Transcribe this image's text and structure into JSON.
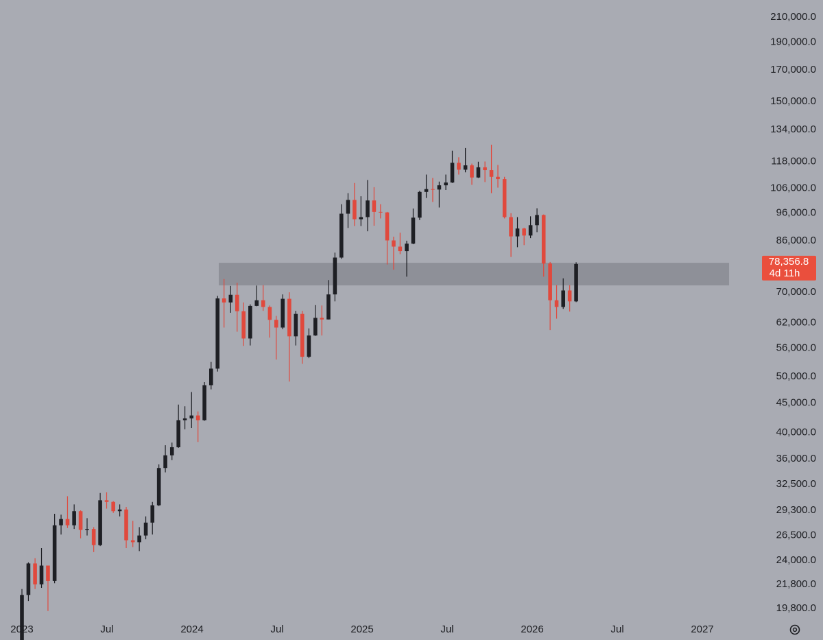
{
  "chart_data": {
    "type": "candlestick",
    "log_scale": true,
    "up_color": "#1e1f24",
    "down_color": "#e0493d",
    "zone_color": "#8e9098",
    "last_color": "#ea4f3d",
    "ylim": [
      18850,
      224900
    ],
    "yticks": [
      {
        "value": 210000,
        "label": "210,000.0"
      },
      {
        "value": 190000,
        "label": "190,000.0"
      },
      {
        "value": 170000,
        "label": "170,000.0"
      },
      {
        "value": 150000,
        "label": "150,000.0"
      },
      {
        "value": 134000,
        "label": "134,000.0"
      },
      {
        "value": 118000,
        "label": "118,000.0"
      },
      {
        "value": 106000,
        "label": "106,000.0"
      },
      {
        "value": 96000,
        "label": "96,000.0"
      },
      {
        "value": 86000,
        "label": "86,000.0"
      },
      {
        "value": 70000,
        "label": "70,000.0"
      },
      {
        "value": 62000,
        "label": "62,000.0"
      },
      {
        "value": 56000,
        "label": "56,000.0"
      },
      {
        "value": 50000,
        "label": "50,000.0"
      },
      {
        "value": 45000,
        "label": "45,000.0"
      },
      {
        "value": 40000,
        "label": "40,000.0"
      },
      {
        "value": 36000,
        "label": "36,000.0"
      },
      {
        "value": 32500,
        "label": "32,500.0"
      },
      {
        "value": 29300,
        "label": "29,300.0"
      },
      {
        "value": 26500,
        "label": "26,500.0"
      },
      {
        "value": 24000,
        "label": "24,000.0"
      },
      {
        "value": 21800,
        "label": "21,800.0"
      },
      {
        "value": 19800,
        "label": "19,800.0"
      }
    ],
    "xlim": [
      2022.871,
      2027.306
    ],
    "xticks": [
      2023,
      {
        "value": 2023.5,
        "label": "Jul"
      },
      2024,
      {
        "value": 2024.5,
        "label": "Jul"
      },
      2025,
      {
        "value": 2025.5,
        "label": "Jul"
      },
      2026,
      {
        "value": 2026.5,
        "label": "Jul"
      },
      2027
    ],
    "zone": {
      "xlim": [
        2024.157,
        2027.157
      ],
      "ylim": [
        71950,
        78750
      ]
    },
    "last_price": {
      "value": 78356.8,
      "label": "78,356.8"
    },
    "countdown": "4d 11h",
    "x": [
      2023.0,
      2023.038,
      2023.077,
      2023.115,
      2023.153,
      2023.192,
      2023.23,
      2023.268,
      2023.307,
      2023.345,
      2023.383,
      2023.422,
      2023.46,
      2023.498,
      2023.537,
      2023.575,
      2023.613,
      2023.652,
      2023.69,
      2023.728,
      2023.767,
      2023.805,
      2023.843,
      2023.882,
      2023.92,
      2023.958,
      2023.997,
      2024.035,
      2024.073,
      2024.112,
      2024.15,
      2024.188,
      2024.227,
      2024.265,
      2024.303,
      2024.342,
      2024.38,
      2024.418,
      2024.457,
      2024.495,
      2024.533,
      2024.572,
      2024.61,
      2024.648,
      2024.687,
      2024.725,
      2024.763,
      2024.802,
      2024.84,
      2024.878,
      2024.917,
      2024.955,
      2024.993,
      2025.032,
      2025.07,
      2025.108,
      2025.147,
      2025.185,
      2025.223,
      2025.262,
      2025.3,
      2025.338,
      2025.377,
      2025.415,
      2025.453,
      2025.492,
      2025.53,
      2025.568,
      2025.607,
      2025.645,
      2025.683,
      2025.722,
      2025.76,
      2025.798,
      2025.837,
      2025.875,
      2025.913,
      2025.952,
      2025.99,
      2026.028,
      2026.067,
      2026.105,
      2026.143,
      2026.182,
      2026.22,
      2026.258
    ],
    "ohlc": [
      [
        16600,
        21400,
        16500,
        20900
      ],
      [
        20900,
        23800,
        20400,
        23700
      ],
      [
        23700,
        24200,
        21400,
        21800
      ],
      [
        21800,
        25200,
        21500,
        23500
      ],
      [
        23500,
        23500,
        19600,
        22100
      ],
      [
        22100,
        28900,
        21900,
        27600
      ],
      [
        27600,
        28800,
        26600,
        28300
      ],
      [
        28300,
        31000,
        27300,
        27600
      ],
      [
        27600,
        30000,
        27200,
        29200
      ],
      [
        29200,
        29300,
        26200,
        27100
      ],
      [
        27100,
        28400,
        26500,
        27200
      ],
      [
        27200,
        27400,
        24800,
        25500
      ],
      [
        25500,
        31400,
        25400,
        30500
      ],
      [
        30500,
        31500,
        29500,
        30300
      ],
      [
        30300,
        30400,
        29000,
        29200
      ],
      [
        29200,
        30000,
        28600,
        29400
      ],
      [
        29400,
        29700,
        25200,
        26000
      ],
      [
        26000,
        28100,
        25300,
        25800
      ],
      [
        25800,
        27400,
        24900,
        26500
      ],
      [
        26500,
        28600,
        26100,
        27900
      ],
      [
        27900,
        30300,
        26600,
        29900
      ],
      [
        29900,
        35200,
        29800,
        34700
      ],
      [
        34700,
        38000,
        34100,
        36500
      ],
      [
        36500,
        38400,
        35800,
        37700
      ],
      [
        37700,
        44700,
        37600,
        42000
      ],
      [
        42000,
        44400,
        40500,
        42300
      ],
      [
        42300,
        47000,
        40700,
        42800
      ],
      [
        42800,
        43500,
        38500,
        42000
      ],
      [
        42000,
        48900,
        41900,
        48300
      ],
      [
        48300,
        53000,
        47500,
        51600
      ],
      [
        51600,
        69000,
        51000,
        68300
      ],
      [
        68300,
        73800,
        60800,
        67200
      ],
      [
        67200,
        71800,
        64500,
        69300
      ],
      [
        69300,
        72700,
        59800,
        64900
      ],
      [
        64900,
        67200,
        56500,
        58200
      ],
      [
        58200,
        66700,
        56600,
        66300
      ],
      [
        66300,
        71900,
        66200,
        67800
      ],
      [
        67800,
        72000,
        65000,
        66000
      ],
      [
        66000,
        66400,
        58400,
        62700
      ],
      [
        62700,
        63700,
        53500,
        60800
      ],
      [
        60800,
        69400,
        60400,
        68200
      ],
      [
        68200,
        70000,
        49000,
        58700
      ],
      [
        58700,
        65000,
        56600,
        64200
      ],
      [
        64200,
        65000,
        52600,
        54100
      ],
      [
        54100,
        60600,
        53800,
        58900
      ],
      [
        58900,
        66500,
        58800,
        63200
      ],
      [
        63200,
        66400,
        58900,
        62800
      ],
      [
        62800,
        73500,
        62800,
        69400
      ],
      [
        69400,
        82000,
        67500,
        80400
      ],
      [
        80400,
        99500,
        80000,
        95800
      ],
      [
        95800,
        104000,
        90500,
        101200
      ],
      [
        101200,
        108300,
        91200,
        93700
      ],
      [
        93700,
        102700,
        91200,
        94500
      ],
      [
        94500,
        109600,
        89300,
        101000
      ],
      [
        101000,
        106500,
        91300,
        96500
      ],
      [
        96500,
        99500,
        94000,
        96300
      ],
      [
        96300,
        96500,
        78200,
        86100
      ],
      [
        86100,
        87400,
        76600,
        84000
      ],
      [
        84000,
        88800,
        81500,
        82500
      ],
      [
        82500,
        86000,
        74500,
        85000
      ],
      [
        85000,
        97800,
        84800,
        94300
      ],
      [
        94300,
        105000,
        93400,
        104500
      ],
      [
        104500,
        112000,
        102000,
        105700
      ],
      [
        105700,
        110500,
        100400,
        105500
      ],
      [
        105500,
        108900,
        98200,
        107300
      ],
      [
        107300,
        112000,
        105300,
        108500
      ],
      [
        108500,
        123200,
        108300,
        117400
      ],
      [
        117400,
        120000,
        112000,
        114200
      ],
      [
        114200,
        124500,
        113000,
        116200
      ],
      [
        116200,
        117000,
        107500,
        110700
      ],
      [
        110700,
        117900,
        110500,
        115300
      ],
      [
        115300,
        118000,
        108700,
        114000
      ],
      [
        114000,
        126200,
        104000,
        111000
      ],
      [
        111000,
        116400,
        106300,
        110000
      ],
      [
        110000,
        111000,
        94000,
        94500
      ],
      [
        94500,
        96000,
        80600,
        87500
      ],
      [
        87500,
        94500,
        83800,
        90300
      ],
      [
        90300,
        90600,
        84500,
        87800
      ],
      [
        87800,
        94800,
        86900,
        91500
      ],
      [
        91500,
        97900,
        89000,
        95300
      ],
      [
        95300,
        95500,
        74500,
        78500
      ],
      [
        78500,
        79000,
        60200,
        67800
      ],
      [
        67800,
        72000,
        63000,
        66000
      ],
      [
        66000,
        74000,
        65500,
        70500
      ],
      [
        70500,
        72000,
        64800,
        67500
      ],
      [
        67500,
        78900,
        67300,
        78356.8
      ]
    ]
  }
}
